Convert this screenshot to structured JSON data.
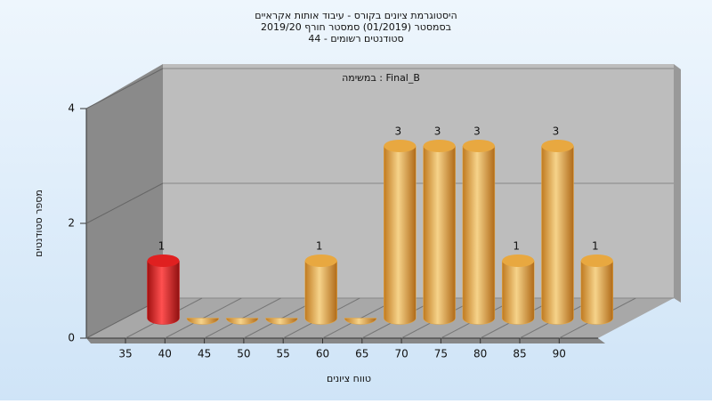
{
  "chart_data": {
    "type": "bar",
    "title": [
      "היסטוגרמת ציונים בקורס - עיבוד אותות אקראיים",
      "בסמסטר  (01/2019)  סמסטר חורף 2019/20",
      "סטודנטים רשומים - 44"
    ],
    "annotation": "במשימה : Final_B",
    "x_label": "טווח ציונים",
    "y_label": "מספר סטודנטים",
    "categories": [
      "35",
      "40",
      "45",
      "50",
      "55",
      "60",
      "65",
      "70",
      "75",
      "80",
      "85",
      "90"
    ],
    "values": [
      1,
      0,
      0,
      0,
      1,
      0,
      3,
      3,
      3,
      1,
      3,
      1
    ],
    "colors": [
      "#e02020",
      "#e8a840",
      "#e8a840",
      "#e8a840",
      "#e8a840",
      "#e8a840",
      "#e8a840",
      "#e8a840",
      "#e8a840",
      "#e8a840",
      "#e8a840",
      "#e8a840"
    ],
    "ylim": [
      0,
      4
    ],
    "yticks": [
      0,
      2,
      4
    ],
    "grid": true
  }
}
